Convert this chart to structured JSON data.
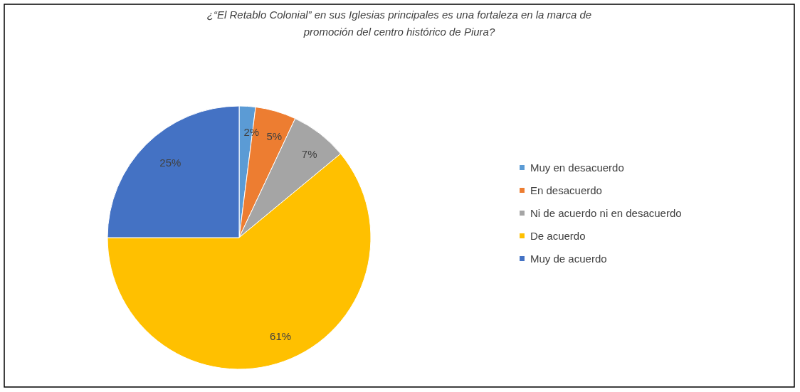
{
  "chart_data": {
    "type": "pie",
    "title": "¿“El Retablo Colonial” en sus Iglesias principales es una fortaleza en la marca de promoción del centro histórico de Piura?",
    "categories": [
      "Muy en desacuerdo",
      "En desacuerdo",
      "Ni de acuerdo ni en desacuerdo",
      "De acuerdo",
      "Muy de acuerdo"
    ],
    "values": [
      2,
      5,
      7,
      61,
      25
    ],
    "colors": [
      "#5b9bd5",
      "#ed7d31",
      "#a5a5a5",
      "#ffc000",
      "#4472c4"
    ],
    "value_labels": [
      "2%",
      "5%",
      "7%",
      "61%",
      "25%"
    ],
    "legend": "right"
  }
}
